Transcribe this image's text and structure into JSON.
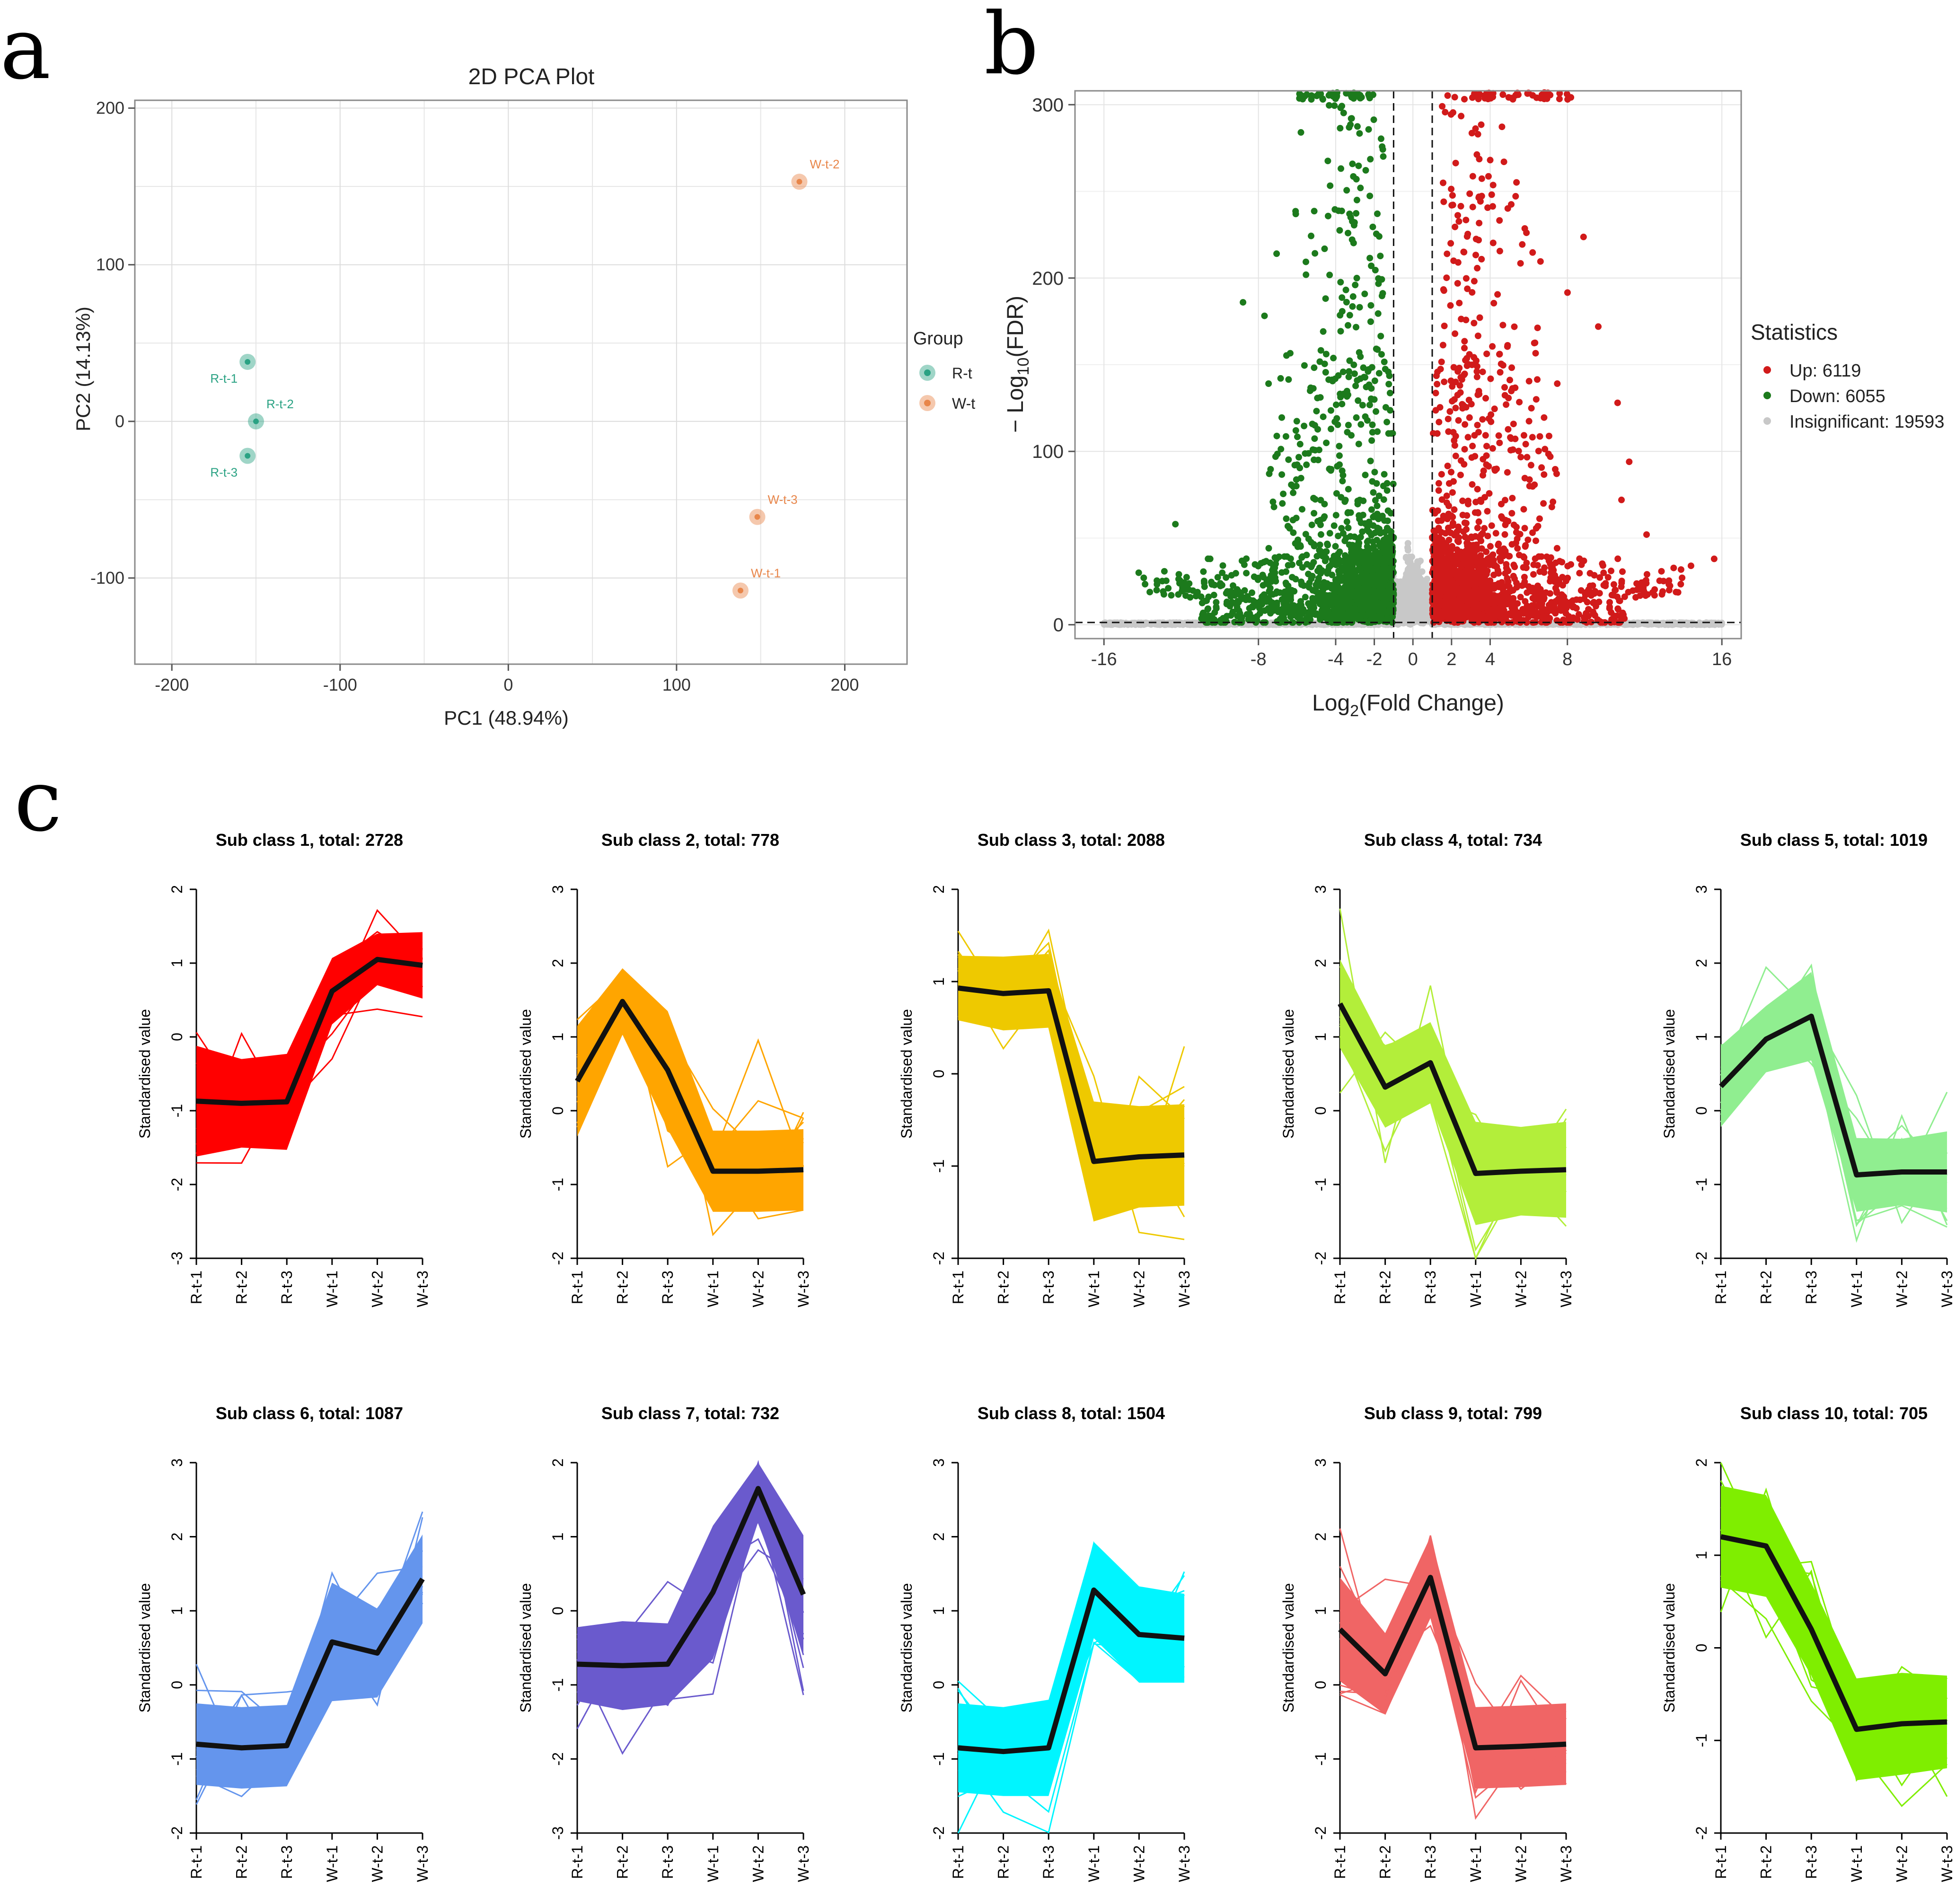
{
  "panel_labels": {
    "a": "a",
    "b": "b",
    "c": "c"
  },
  "colors": {
    "rt": "#2aa283",
    "wt": "#e8864a",
    "up": "#d11a1a",
    "down": "#1c7a1c",
    "insig": "#c8c8c8",
    "grid": "#e6e6e6",
    "border": "#8a8a8a"
  },
  "chart_data": [
    {
      "id": "pca",
      "type": "scatter",
      "title": "2D PCA Plot",
      "xlabel": "PC1 (48.94%)",
      "ylabel": "PC2 (14.13%)",
      "xlim": [
        -222,
        237
      ],
      "ylim": [
        -155,
        205
      ],
      "xticks": [
        -200,
        -100,
        0,
        100,
        200
      ],
      "xtick_labels": [
        "-200",
        "-100",
        "0",
        "100",
        "200"
      ],
      "yticks": [
        -100,
        0,
        100,
        200
      ],
      "ytick_labels": [
        "-100",
        "0",
        "100",
        "200"
      ],
      "legend": {
        "title": "Group",
        "position": "right",
        "entries": [
          {
            "label": "R-t",
            "group": "rt"
          },
          {
            "label": "W-t",
            "group": "wt"
          }
        ]
      },
      "points": [
        {
          "label": "R-t-1",
          "group": "rt",
          "x": -155,
          "y": 38,
          "label_pos": "below-left"
        },
        {
          "label": "R-t-2",
          "group": "rt",
          "x": -150,
          "y": 0,
          "label_pos": "above-right"
        },
        {
          "label": "R-t-3",
          "group": "rt",
          "x": -155,
          "y": -22,
          "label_pos": "below-left"
        },
        {
          "label": "W-t-1",
          "group": "wt",
          "x": 138,
          "y": -108,
          "label_pos": "above-right"
        },
        {
          "label": "W-t-2",
          "group": "wt",
          "x": 173,
          "y": 153,
          "label_pos": "above-right"
        },
        {
          "label": "W-t-3",
          "group": "wt",
          "x": 148,
          "y": -61,
          "label_pos": "above-right"
        }
      ]
    },
    {
      "id": "volcano",
      "type": "scatter",
      "xlabel": "Log2(Fold Change)",
      "ylabel": "-Log10(FDR)",
      "xlim": [
        -17.5,
        17.0
      ],
      "ylim": [
        -8,
        308
      ],
      "xticks": [
        -16,
        -8,
        -4,
        -2,
        0,
        2,
        4,
        8,
        16
      ],
      "xtick_labels": [
        "-16",
        "-8",
        "-4",
        "-2",
        "0",
        "2",
        "4",
        "8",
        "16"
      ],
      "yticks": [
        0,
        100,
        200,
        300
      ],
      "ytick_labels": [
        "0",
        "100",
        "200",
        "300"
      ],
      "thresholds": {
        "fc": [
          -1,
          1
        ],
        "fdr": 1.3
      },
      "legend": {
        "title": "Statistics",
        "position": "right",
        "entries": [
          {
            "label": "Up: 6119",
            "group": "up",
            "count": 6119
          },
          {
            "label": "Down: 6055",
            "group": "down",
            "count": 6055
          },
          {
            "label": "Insignificant: 19593",
            "group": "insig",
            "count": 19593
          }
        ]
      }
    },
    {
      "id": "clusters",
      "type": "line",
      "categories": [
        "R-t-1",
        "R-t-2",
        "R-t-3",
        "W-t-1",
        "W-t-2",
        "W-t-3"
      ],
      "ylabel": "Standardised value",
      "panels": [
        {
          "title": "Sub class 1, total: 2728",
          "color": "#ff0000",
          "ylim": [
            -3,
            2
          ],
          "yticks": [
            "-3",
            "-2",
            "-1",
            "0",
            "1",
            "2"
          ],
          "mean": [
            -0.87,
            -0.9,
            -0.88,
            0.62,
            1.05,
            0.97
          ],
          "spread": [
            0.75,
            0.6,
            0.65,
            0.45,
            0.35,
            0.45
          ]
        },
        {
          "title": "Sub class 2, total: 778",
          "color": "#ffa500",
          "ylim": [
            -2,
            3
          ],
          "yticks": [
            "-2",
            "-1",
            "0",
            "1",
            "2",
            "3"
          ],
          "mean": [
            0.4,
            1.48,
            0.55,
            -0.82,
            -0.82,
            -0.8
          ],
          "spread": [
            0.75,
            0.45,
            0.8,
            0.55,
            0.55,
            0.55
          ]
        },
        {
          "title": "Sub class 3, total: 2088",
          "color": "#eec900",
          "ylim": [
            -2,
            2
          ],
          "yticks": [
            "-2",
            "-1",
            "0",
            "1",
            "2"
          ],
          "mean": [
            0.93,
            0.87,
            0.9,
            -0.95,
            -0.9,
            -0.88
          ],
          "spread": [
            0.35,
            0.4,
            0.4,
            0.65,
            0.55,
            0.55
          ]
        },
        {
          "title": "Sub class 4, total: 734",
          "color": "#b3ee3a",
          "ylim": [
            -2,
            3
          ],
          "yticks": [
            "-2",
            "-1",
            "0",
            "1",
            "2",
            "3"
          ],
          "mean": [
            1.45,
            0.32,
            0.65,
            -0.85,
            -0.82,
            -0.8
          ],
          "spread": [
            0.6,
            0.55,
            0.55,
            0.7,
            0.6,
            0.65
          ]
        },
        {
          "title": "Sub class 5, total: 1019",
          "color": "#90ee90",
          "ylim": [
            -2,
            3
          ],
          "yticks": [
            "-2",
            "-1",
            "0",
            "1",
            "2",
            "3"
          ],
          "mean": [
            0.33,
            0.97,
            1.28,
            -0.87,
            -0.83,
            -0.83
          ],
          "spread": [
            0.55,
            0.45,
            0.6,
            0.5,
            0.45,
            0.55
          ]
        },
        {
          "title": "Sub class 6, total: 1087",
          "color": "#6495ed",
          "ylim": [
            -2,
            3
          ],
          "yticks": [
            "-2",
            "-1",
            "0",
            "1",
            "2",
            "3"
          ],
          "mean": [
            -0.8,
            -0.85,
            -0.82,
            0.58,
            0.43,
            1.43
          ],
          "spread": [
            0.55,
            0.55,
            0.55,
            0.8,
            0.6,
            0.6
          ]
        },
        {
          "title": "Sub class 7, total: 732",
          "color": "#6a5acd",
          "ylim": [
            -3,
            2
          ],
          "yticks": [
            "-3",
            "-2",
            "-1",
            "0",
            "1",
            "2"
          ],
          "mean": [
            -0.72,
            -0.74,
            -0.72,
            0.25,
            1.65,
            0.22
          ],
          "spread": [
            0.5,
            0.6,
            0.55,
            0.9,
            0.45,
            0.8
          ]
        },
        {
          "title": "Sub class 8, total: 1504",
          "color": "#00f5ff",
          "ylim": [
            -2,
            3
          ],
          "yticks": [
            "-2",
            "-1",
            "0",
            "1",
            "2",
            "3"
          ],
          "mean": [
            -0.85,
            -0.9,
            -0.85,
            1.28,
            0.68,
            0.63
          ],
          "spread": [
            0.6,
            0.6,
            0.65,
            0.65,
            0.65,
            0.6
          ]
        },
        {
          "title": "Sub class 9, total: 799",
          "color": "#f06565",
          "ylim": [
            -2,
            3
          ],
          "yticks": [
            "-2",
            "-1",
            "0",
            "1",
            "2",
            "3"
          ],
          "mean": [
            0.75,
            0.15,
            1.45,
            -0.85,
            -0.83,
            -0.8
          ],
          "spread": [
            0.7,
            0.55,
            0.55,
            0.55,
            0.55,
            0.55
          ]
        },
        {
          "title": "Sub class 10, total: 705",
          "color": "#7fee00",
          "ylim": [
            -2,
            2
          ],
          "yticks": [
            "-2",
            "-1",
            "0",
            "1",
            "2"
          ],
          "mean": [
            1.2,
            1.1,
            0.2,
            -0.88,
            -0.82,
            -0.8
          ],
          "spread": [
            0.55,
            0.55,
            0.5,
            0.55,
            0.55,
            0.5
          ]
        }
      ]
    }
  ]
}
